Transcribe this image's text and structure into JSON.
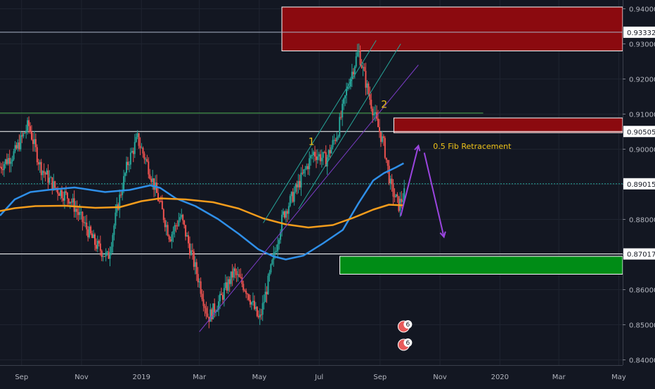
{
  "chart_data": {
    "type": "candlestick",
    "instrument_overlays": "price chart with moving averages, zones and annotations",
    "x_axis": {
      "tick_labels": [
        "Sep",
        "Nov",
        "2019",
        "Mar",
        "May",
        "Jul",
        "Sep",
        "Nov",
        "2020",
        "Mar",
        "May"
      ],
      "tick_dates": [
        "2018-09-01",
        "2018-11-01",
        "2019-01-01",
        "2019-03-01",
        "2019-05-01",
        "2019-07-01",
        "2019-09-01",
        "2019-11-01",
        "2020-01-01",
        "2020-03-01",
        "2020-05-01"
      ],
      "range": [
        "2018-08-10",
        "2020-05-05"
      ]
    },
    "y_axis": {
      "tick_labels": [
        "0.84000",
        "0.85000",
        "0.86000",
        "0.87000",
        "0.88000",
        "0.89000",
        "0.90000",
        "0.91000",
        "0.92000",
        "0.93000",
        "0.94000"
      ],
      "tick_values": [
        0.84,
        0.85,
        0.86,
        0.87,
        0.88,
        0.89,
        0.9,
        0.91,
        0.92,
        0.93,
        0.94
      ],
      "range": [
        0.8385,
        0.9425
      ],
      "position": "right",
      "grid": true
    },
    "price_markers": [
      {
        "label": "0.93332",
        "value": 0.93332,
        "color": "#aab4c8"
      },
      {
        "label": "0.90505",
        "value": 0.90505,
        "color": "#ffffff"
      },
      {
        "label": "0.89015",
        "value": 0.89015,
        "color": "#26a69a",
        "dashed": true
      },
      {
        "label": "0.87017",
        "value": 0.87017,
        "color": "#ffffff"
      }
    ],
    "horizontal_lines": [
      {
        "value": 0.9103,
        "color": "#4caf50",
        "x_end": "2019-12-15"
      }
    ],
    "zones": [
      {
        "color": "#8b0a0f",
        "x_start": "2019-05-24",
        "x_end": "2020-05-05",
        "y_low": 0.928,
        "y_high": 0.9405
      },
      {
        "color": "#8b0a0f",
        "x_start": "2019-09-15",
        "x_end": "2020-05-05",
        "y_low": 0.9047,
        "y_high": 0.9089
      },
      {
        "color": "#008c16",
        "x_start": "2019-07-22",
        "x_end": "2020-05-05",
        "y_low": 0.8644,
        "y_high": 0.8695
      }
    ],
    "series": [
      {
        "color": "#2f8fe8",
        "values": [
          [
            "2018-08-10",
            0.8811
          ],
          [
            "2018-08-25",
            0.8857
          ],
          [
            "2018-09-10",
            0.8878
          ],
          [
            "2018-10-01",
            0.8885
          ],
          [
            "2018-10-25",
            0.8891
          ],
          [
            "2018-11-25",
            0.8878
          ],
          [
            "2018-12-20",
            0.8884
          ],
          [
            "2019-01-10",
            0.8897
          ],
          [
            "2019-01-20",
            0.889
          ],
          [
            "2019-02-05",
            0.886
          ],
          [
            "2019-02-25",
            0.8838
          ],
          [
            "2019-03-20",
            0.8801
          ],
          [
            "2019-04-10",
            0.8759
          ],
          [
            "2019-04-30",
            0.8715
          ],
          [
            "2019-05-15",
            0.8695
          ],
          [
            "2019-05-28",
            0.8686
          ],
          [
            "2019-06-15",
            0.8697
          ],
          [
            "2019-07-05",
            0.8732
          ],
          [
            "2019-07-25",
            0.877
          ],
          [
            "2019-08-10",
            0.8846
          ],
          [
            "2019-08-25",
            0.8911
          ],
          [
            "2019-09-05",
            0.8932
          ],
          [
            "2019-09-17",
            0.8948
          ],
          [
            "2019-09-25",
            0.896
          ]
        ]
      },
      {
        "color": "#f39c1c",
        "values": [
          [
            "2018-08-10",
            0.8824
          ],
          [
            "2018-08-25",
            0.8832
          ],
          [
            "2018-09-15",
            0.8838
          ],
          [
            "2018-10-15",
            0.8839
          ],
          [
            "2018-11-15",
            0.8833
          ],
          [
            "2018-12-10",
            0.8835
          ],
          [
            "2019-01-01",
            0.8852
          ],
          [
            "2019-01-20",
            0.886
          ],
          [
            "2019-02-15",
            0.8857
          ],
          [
            "2019-03-15",
            0.8849
          ],
          [
            "2019-04-10",
            0.8831
          ],
          [
            "2019-05-05",
            0.8803
          ],
          [
            "2019-05-28",
            0.8786
          ],
          [
            "2019-06-20",
            0.8777
          ],
          [
            "2019-07-15",
            0.8784
          ],
          [
            "2019-08-05",
            0.8805
          ],
          [
            "2019-08-25",
            0.8828
          ],
          [
            "2019-09-10",
            0.8842
          ],
          [
            "2019-09-25",
            0.884
          ]
        ]
      }
    ],
    "trend_lines": [
      {
        "color": "#7b3cc7",
        "from": [
          "2019-03-01",
          0.848
        ],
        "to": [
          "2019-10-10",
          0.924
        ]
      },
      {
        "color": "#26a69a",
        "from": [
          "2019-05-05",
          0.879
        ],
        "to": [
          "2019-08-28",
          0.931
        ]
      },
      {
        "color": "#26a69a",
        "from": [
          "2019-06-10",
          0.883
        ],
        "to": [
          "2019-09-22",
          0.93
        ]
      }
    ],
    "arrows": [
      {
        "color": "#9b45e0",
        "from": [
          "2019-09-22",
          0.881
        ],
        "to": [
          "2019-10-10",
          0.901
        ]
      },
      {
        "color": "#9b45e0",
        "from": [
          "2019-10-16",
          0.899
        ],
        "to": [
          "2019-11-05",
          0.875
        ]
      }
    ],
    "annotations": [
      {
        "text": "1",
        "color": "#f0c419",
        "x": "2019-06-20",
        "y": 0.9012
      },
      {
        "text": "2",
        "color": "#f0c419",
        "x": "2019-09-02",
        "y": 0.9118
      },
      {
        "text": "0.5 Fib Retracement",
        "color": "#f0c419",
        "x": "2019-10-25",
        "y": 0.9001
      }
    ],
    "event_markers": [
      {
        "text": "6",
        "x": "2019-09-25",
        "y": 0.8495
      },
      {
        "text": "6",
        "x": "2019-09-25",
        "y": 0.8443
      }
    ]
  }
}
